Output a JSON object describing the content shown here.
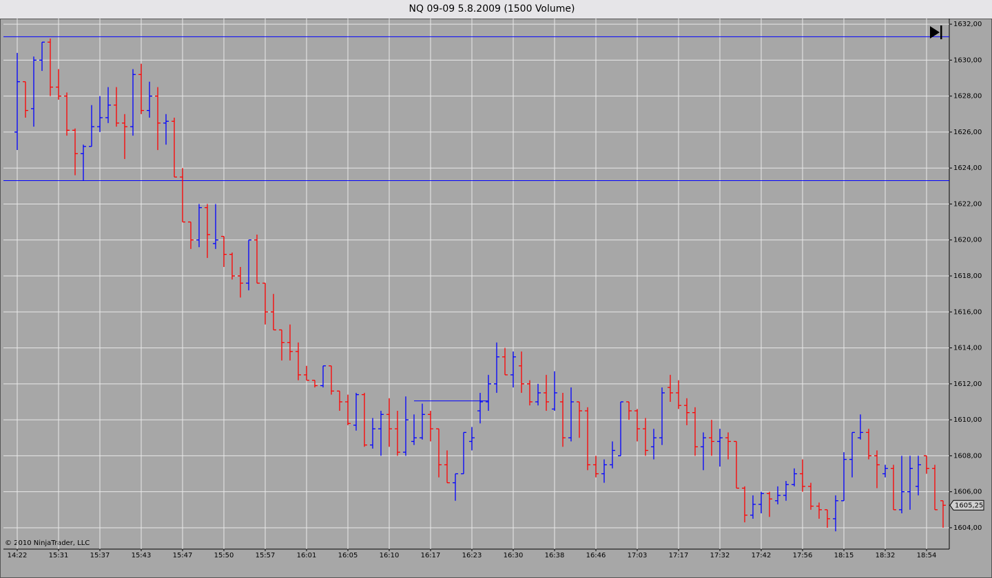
{
  "chart_data": {
    "type": "ohlc",
    "title": "NQ 09-09  5.8.2009 (1500 Volume)",
    "copyright": "© 2010 NinjaTrader, LLC",
    "up_color": "#0000ff",
    "down_color": "#ff0000",
    "grid": true,
    "categories": [
      "14:22",
      null,
      null,
      null,
      null,
      "15:31",
      null,
      null,
      null,
      null,
      "15:37",
      null,
      null,
      null,
      null,
      "15:43",
      null,
      null,
      null,
      null,
      "15:47",
      null,
      null,
      null,
      null,
      "15:50",
      null,
      null,
      null,
      null,
      "15:57",
      null,
      null,
      null,
      null,
      "16:01",
      null,
      null,
      null,
      null,
      "16:05",
      null,
      null,
      null,
      null,
      "16:10",
      null,
      null,
      null,
      null,
      "16:17",
      null,
      null,
      null,
      null,
      "16:23",
      null,
      null,
      null,
      null,
      "16:30",
      null,
      null,
      null,
      null,
      "16:38",
      null,
      null,
      null,
      null,
      "16:46",
      null,
      null,
      null,
      null,
      "17:03",
      null,
      null,
      null,
      null,
      "17:17",
      null,
      null,
      null,
      null,
      "17:32",
      null,
      null,
      null,
      null,
      "17:42",
      null,
      null,
      null,
      null,
      "17:56",
      null,
      null,
      null,
      null,
      "18:15",
      null,
      null,
      null,
      null,
      "18:32",
      null,
      null,
      null,
      null,
      "18:54",
      null,
      null
    ],
    "open": [
      1626.0,
      1628.8,
      1627.3,
      1630.0,
      1631.0,
      1628.5,
      1628.0,
      1626.1,
      1624.8,
      1625.2,
      1626.3,
      1626.8,
      1627.5,
      1626.5,
      1626.3,
      1629.2,
      1627.2,
      1628.0,
      1626.5,
      1626.6,
      1623.5,
      1621.0,
      1620.0,
      1621.8,
      1619.8,
      1620.2,
      1619.2,
      1618.0,
      1617.6,
      1620.0,
      1617.6,
      1616.0,
      1615.0,
      1614.3,
      1613.8,
      1612.5,
      1612.2,
      1611.9,
      1613.0,
      1611.6,
      1611.0,
      1609.7,
      1611.4,
      1608.6,
      1609.5,
      1610.3,
      1609.5,
      1608.2,
      1608.8,
      1609.0,
      1610.3,
      1609.5,
      1607.5,
      1606.5,
      1607.0,
      1608.8,
      1610.5,
      1611.0,
      1612.0,
      1613.5,
      1612.5,
      1613.0,
      1612.0,
      1611.0,
      1611.5,
      1610.6,
      1611.0,
      1609.0,
      1611.0,
      1610.5,
      1607.5,
      1607.0,
      1607.5,
      1608.0,
      1611.0,
      1610.5,
      1609.5,
      1608.5,
      1609.0,
      1611.8,
      1611.5,
      1610.8,
      1610.4,
      1608.5,
      1609.0,
      1608.8,
      1609.0,
      1608.8,
      1606.2,
      1604.7,
      1605.3,
      1605.9,
      1605.5,
      1605.8,
      1606.4,
      1607.0,
      1606.3,
      1605.2,
      1605.0,
      1604.5,
      1605.5,
      1607.8,
      1609.0,
      1609.3,
      1608.0,
      1607.0,
      1607.3,
      1605.0,
      1606.0,
      1606.3,
      1608.0,
      1607.3,
      1605.5
    ],
    "high": [
      1630.4,
      1628.8,
      1630.2,
      1631.0,
      1631.2,
      1629.5,
      1628.2,
      1626.2,
      1625.3,
      1627.5,
      1628.0,
      1628.5,
      1628.5,
      1627.0,
      1629.5,
      1629.8,
      1628.8,
      1628.5,
      1627.0,
      1626.8,
      1624.0,
      1621.0,
      1622.0,
      1622.0,
      1622.0,
      1620.2,
      1619.3,
      1618.5,
      1620.0,
      1620.3,
      1617.6,
      1617.0,
      1615.0,
      1615.3,
      1614.3,
      1613.0,
      1612.2,
      1613.0,
      1613.0,
      1611.6,
      1611.4,
      1611.5,
      1611.5,
      1610.1,
      1610.5,
      1611.2,
      1610.5,
      1611.3,
      1610.3,
      1610.9,
      1610.5,
      1609.5,
      1608.3,
      1607.0,
      1609.3,
      1609.6,
      1611.5,
      1612.5,
      1614.3,
      1614.0,
      1613.8,
      1613.8,
      1612.2,
      1612.0,
      1612.5,
      1612.7,
      1611.5,
      1611.8,
      1611.0,
      1610.7,
      1608.0,
      1607.8,
      1608.8,
      1611.0,
      1611.0,
      1610.6,
      1610.1,
      1609.5,
      1611.8,
      1612.5,
      1612.2,
      1611.2,
      1610.7,
      1609.3,
      1610.0,
      1609.5,
      1609.3,
      1608.8,
      1606.3,
      1605.8,
      1606.0,
      1606.0,
      1606.3,
      1606.6,
      1607.3,
      1607.8,
      1606.5,
      1605.4,
      1605.0,
      1605.8,
      1608.2,
      1609.3,
      1610.3,
      1609.5,
      1608.3,
      1607.5,
      1607.5,
      1608.0,
      1608.0,
      1608.0,
      1608.0,
      1607.5,
      1605.5
    ],
    "low": [
      1625.0,
      1626.8,
      1626.3,
      1629.4,
      1628.0,
      1627.8,
      1625.8,
      1623.6,
      1623.3,
      1625.2,
      1626.0,
      1626.5,
      1626.3,
      1624.5,
      1625.8,
      1627.0,
      1626.8,
      1625.0,
      1625.3,
      1623.5,
      1621.0,
      1619.5,
      1619.6,
      1619.0,
      1619.5,
      1618.5,
      1617.8,
      1616.8,
      1617.2,
      1617.6,
      1615.3,
      1615.0,
      1613.3,
      1613.3,
      1612.2,
      1612.2,
      1611.8,
      1611.8,
      1611.4,
      1610.5,
      1609.7,
      1609.4,
      1608.5,
      1608.4,
      1608.0,
      1608.5,
      1608.0,
      1608.0,
      1608.6,
      1608.9,
      1608.8,
      1606.8,
      1606.5,
      1605.5,
      1607.0,
      1608.3,
      1609.8,
      1610.5,
      1611.5,
      1612.5,
      1611.8,
      1611.5,
      1610.8,
      1610.8,
      1610.5,
      1610.5,
      1608.5,
      1608.8,
      1609.0,
      1607.2,
      1606.8,
      1606.5,
      1607.3,
      1608.0,
      1610.0,
      1608.8,
      1608.0,
      1607.8,
      1608.6,
      1611.0,
      1610.6,
      1609.7,
      1608.0,
      1607.2,
      1608.0,
      1607.4,
      1607.8,
      1606.2,
      1604.3,
      1604.5,
      1604.8,
      1604.6,
      1605.3,
      1605.5,
      1606.3,
      1606.0,
      1605.0,
      1604.5,
      1604.0,
      1603.8,
      1605.5,
      1606.8,
      1608.9,
      1607.8,
      1606.2,
      1606.8,
      1605.0,
      1604.8,
      1605.0,
      1605.8,
      1607.0,
      1605.0,
      1604.0
    ],
    "close": [
      1628.8,
      1627.2,
      1630.0,
      1631.0,
      1628.5,
      1628.0,
      1626.1,
      1624.8,
      1625.2,
      1626.3,
      1626.8,
      1627.5,
      1626.5,
      1626.3,
      1629.2,
      1627.2,
      1628.0,
      1626.5,
      1626.6,
      1623.5,
      1621.0,
      1620.0,
      1621.8,
      1620.3,
      1620.0,
      1619.2,
      1618.0,
      1617.6,
      1620.0,
      1617.6,
      1616.0,
      1615.0,
      1614.3,
      1613.8,
      1612.5,
      1612.2,
      1611.9,
      1613.0,
      1611.6,
      1611.0,
      1609.8,
      1611.4,
      1608.6,
      1609.5,
      1610.3,
      1609.5,
      1608.2,
      1610.0,
      1609.0,
      1610.3,
      1609.5,
      1607.5,
      1606.5,
      1607.0,
      1609.3,
      1609.0,
      1611.0,
      1612.0,
      1613.5,
      1612.5,
      1613.5,
      1612.0,
      1611.0,
      1611.5,
      1611.0,
      1611.5,
      1609.0,
      1611.0,
      1610.5,
      1607.5,
      1607.0,
      1607.5,
      1608.3,
      1611.0,
      1610.5,
      1609.5,
      1608.3,
      1609.0,
      1611.5,
      1611.5,
      1610.8,
      1610.4,
      1608.5,
      1609.0,
      1608.8,
      1609.0,
      1608.8,
      1606.2,
      1604.7,
      1605.3,
      1605.9,
      1605.6,
      1605.8,
      1606.4,
      1607.0,
      1606.3,
      1605.2,
      1605.0,
      1604.5,
      1605.5,
      1607.8,
      1609.3,
      1609.3,
      1608.0,
      1607.5,
      1607.3,
      1605.0,
      1606.0,
      1607.3,
      1607.5,
      1607.3,
      1605.0,
      1605.25
    ],
    "last_price": {
      "value": 1605.25,
      "label": "1605,25"
    },
    "levels": [
      {
        "value": 1631.3,
        "color": "#0000ff"
      },
      {
        "value": 1623.3,
        "color": "#0000ff"
      }
    ],
    "segment": {
      "value": 1611.05,
      "start": 48,
      "end": 57,
      "color": "#0000ff"
    },
    "ylim": [
      1602.85,
      1632.31
    ],
    "yticks": [
      {
        "value": 1604,
        "label": "1604,00"
      },
      {
        "value": 1606,
        "label": "1606,00"
      },
      {
        "value": 1608,
        "label": "1608,00"
      },
      {
        "value": 1610,
        "label": "1610,00"
      },
      {
        "value": 1612,
        "label": "1612,00"
      },
      {
        "value": 1614,
        "label": "1614,00"
      },
      {
        "value": 1616,
        "label": "1616,00"
      },
      {
        "value": 1618,
        "label": "1618,00"
      },
      {
        "value": 1620,
        "label": "1620,00"
      },
      {
        "value": 1622,
        "label": "1622,00"
      },
      {
        "value": 1624,
        "label": "1624,00"
      },
      {
        "value": 1626,
        "label": "1626,00"
      },
      {
        "value": 1628,
        "label": "1628,00"
      },
      {
        "value": 1630,
        "label": "1630,00"
      },
      {
        "value": 1632,
        "label": "1632,00"
      }
    ]
  }
}
